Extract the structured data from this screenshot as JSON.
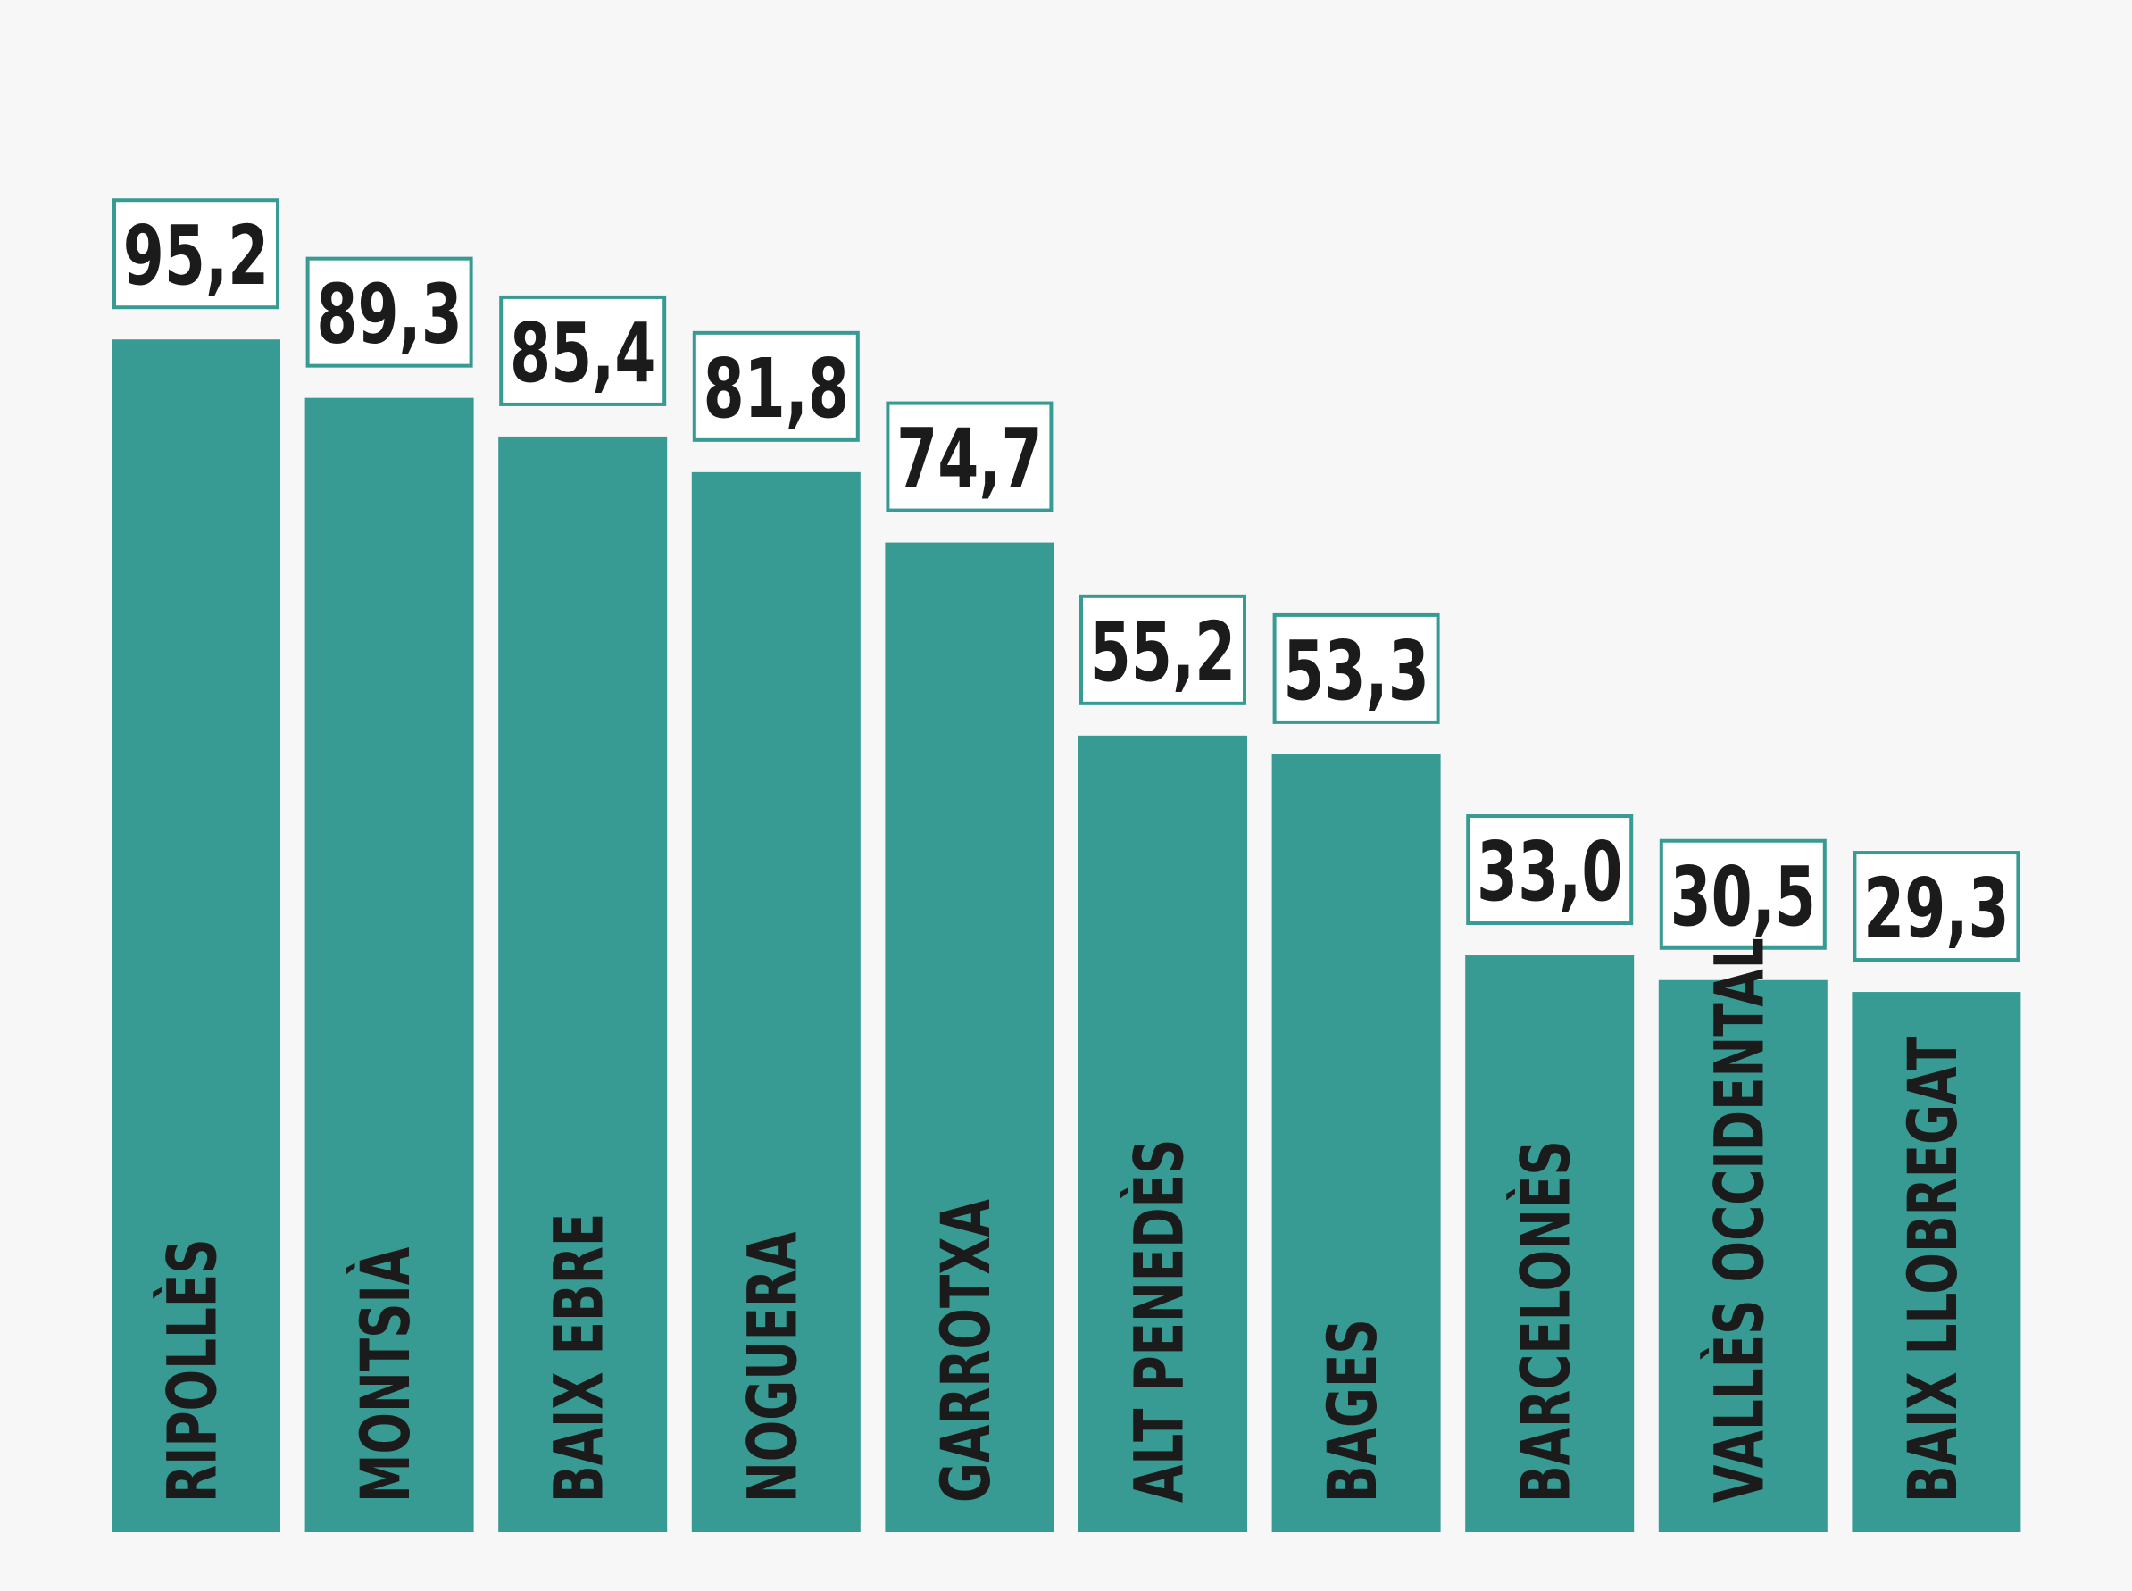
{
  "chart_data": {
    "type": "bar",
    "categories": [
      "RIPOLLÈS",
      "MONTSIÀ",
      "BAIX EBRE",
      "NOGUERA",
      "GARROTXA",
      "ALT PENEDÈS",
      "BAGES",
      "BARCELONÈS",
      "VALLÈS OCCIDENTAL",
      "BAIX LLOBREGAT"
    ],
    "values": [
      95.2,
      89.3,
      85.4,
      81.8,
      74.7,
      55.2,
      53.3,
      33.0,
      30.5,
      29.3
    ],
    "value_labels": [
      "95,2",
      "89,3",
      "85,4",
      "81,8",
      "74,7",
      "55,2",
      "53,3",
      "33,0",
      "30,5",
      "29,3"
    ],
    "color": "#379a93"
  }
}
